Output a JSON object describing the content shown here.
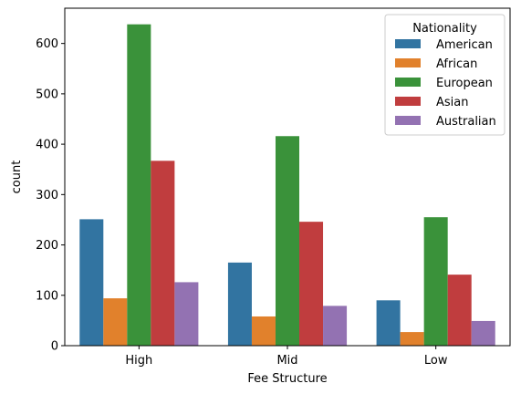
{
  "chart_data": {
    "type": "bar",
    "categories": [
      "High",
      "Mid",
      "Low"
    ],
    "series": [
      {
        "name": "American",
        "values": [
          251,
          165,
          90
        ],
        "color": "#3274a1"
      },
      {
        "name": "African",
        "values": [
          94,
          58,
          27
        ],
        "color": "#e1812c"
      },
      {
        "name": "European",
        "values": [
          638,
          416,
          255
        ],
        "color": "#3a923a"
      },
      {
        "name": "Asian",
        "values": [
          367,
          246,
          141
        ],
        "color": "#c03d3e"
      },
      {
        "name": "Australian",
        "values": [
          126,
          79,
          49
        ],
        "color": "#9372b2"
      }
    ],
    "title": "",
    "xlabel": "Fee Structure",
    "ylabel": "count",
    "ylim": [
      0,
      670
    ],
    "yticks": [
      0,
      100,
      200,
      300,
      400,
      500,
      600
    ],
    "legend": {
      "title": "Nationality",
      "placement": "top-right"
    },
    "grid": false
  }
}
